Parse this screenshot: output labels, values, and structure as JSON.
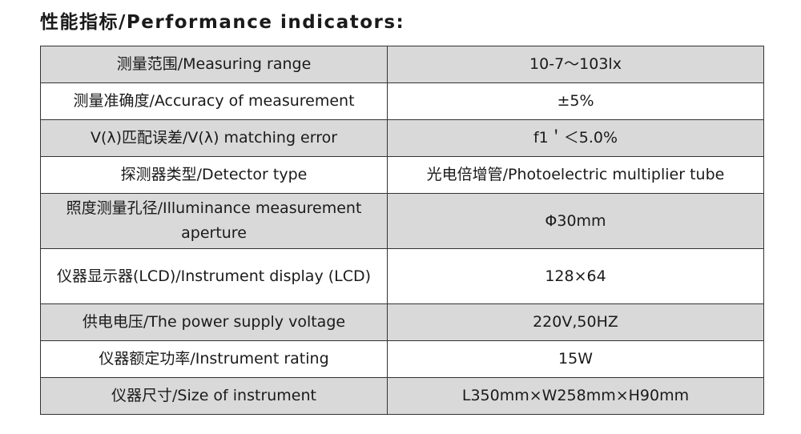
{
  "header": {
    "title": "性能指标/Performance indicators:"
  },
  "table": {
    "rows": [
      [
        "测量范围/Measuring range",
        "10-7～103lx"
      ],
      [
        "测量准确度/Accuracy of measurement",
        "±5%"
      ],
      [
        "V(λ)匹配误差/V(λ) matching error",
        "f1＇＜5.0%"
      ],
      [
        "探测器类型/Detector type",
        "光电倍增管/Photoelectric multiplier tube"
      ],
      [
        "照度测量孔径/Illuminance measurement aperture",
        "Φ30mm"
      ],
      [
        "仪器显示器(LCD)/Instrument display (LCD)",
        "128×64"
      ],
      [
        "供电电压/The power supply voltage",
        "220V,50HZ"
      ],
      [
        "仪器额定功率/Instrument rating",
        "15W"
      ],
      [
        "仪器尺寸/Size of instrument",
        "L350mm×W258mm×H90mm"
      ]
    ]
  }
}
